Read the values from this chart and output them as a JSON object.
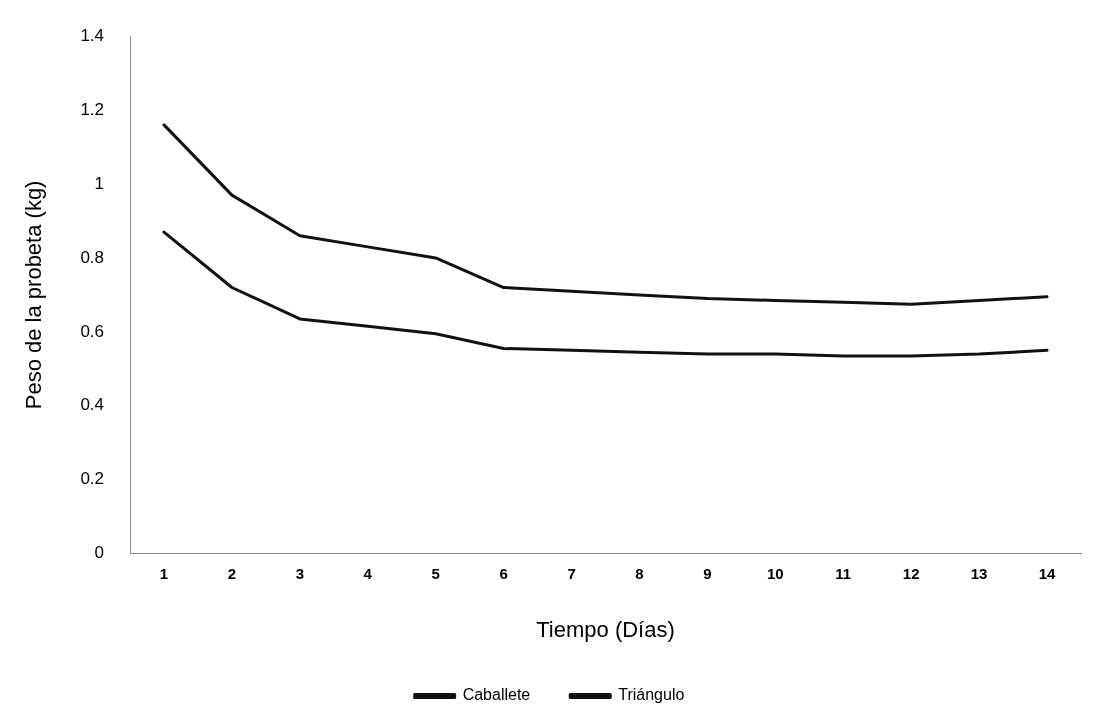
{
  "chart_data": {
    "type": "line",
    "xlabel": "Tiempo (Días)",
    "ylabel": "Peso de la probeta (kg)",
    "categories": [
      "1",
      "2",
      "3",
      "4",
      "5",
      "6",
      "7",
      "8",
      "9",
      "10",
      "11",
      "12",
      "13",
      "14"
    ],
    "series": [
      {
        "name": "Caballete",
        "color": "#111111",
        "values": [
          1.16,
          0.97,
          0.86,
          0.83,
          0.8,
          0.72,
          0.71,
          0.7,
          0.69,
          0.685,
          0.68,
          0.675,
          0.685,
          0.695
        ]
      },
      {
        "name": "Triángulo",
        "color": "#111111",
        "values": [
          0.87,
          0.72,
          0.635,
          0.615,
          0.595,
          0.555,
          0.55,
          0.545,
          0.54,
          0.54,
          0.535,
          0.535,
          0.54,
          0.55
        ]
      }
    ],
    "ylim": [
      0,
      1.4
    ],
    "yticks": [
      0,
      0.2,
      0.4,
      0.6,
      0.8,
      1,
      1.2,
      1.4
    ],
    "grid": false,
    "legend": "bottom",
    "marker": "none",
    "line_style": "solid"
  }
}
